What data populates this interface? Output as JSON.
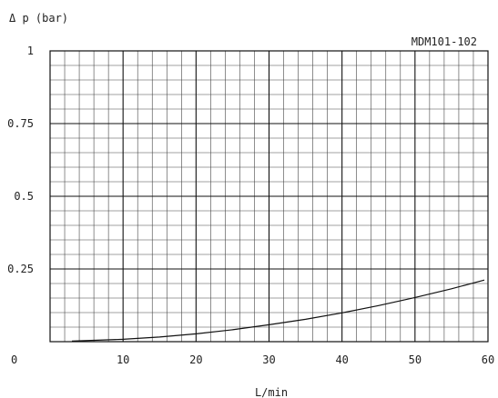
{
  "chart_data": {
    "type": "line",
    "title": "MDM101-102",
    "ylabel": "Δ p (bar)",
    "xlabel": "L/min",
    "xlim": [
      0,
      60
    ],
    "ylim": [
      0,
      1
    ],
    "x_ticks": [
      "0",
      "10",
      "20",
      "30",
      "40",
      "50",
      "60"
    ],
    "y_ticks": [
      "0.25",
      "0.5",
      "0.75",
      "1"
    ],
    "origin_label": "0",
    "grid": true,
    "series": [
      {
        "x": [
          3,
          10,
          15,
          20,
          25,
          30,
          35,
          40,
          45,
          50,
          55,
          59.5
        ],
        "y": [
          0.002,
          0.008,
          0.016,
          0.027,
          0.041,
          0.058,
          0.077,
          0.099,
          0.124,
          0.152,
          0.182,
          0.212
        ]
      }
    ]
  }
}
